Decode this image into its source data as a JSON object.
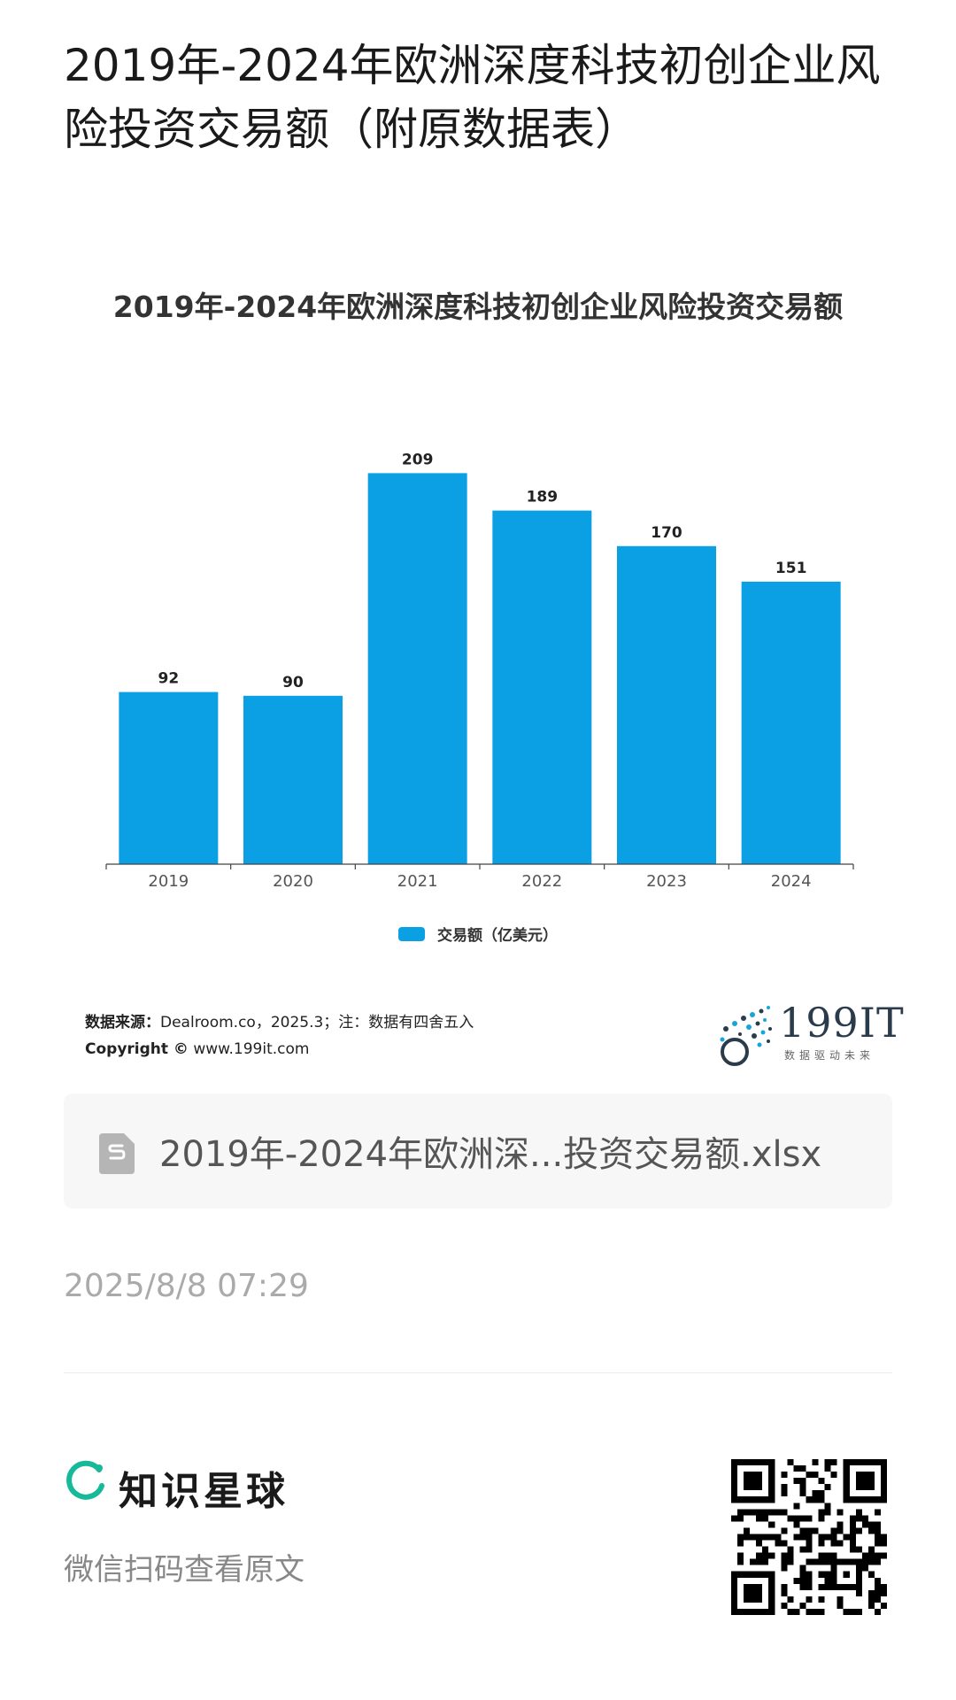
{
  "page": {
    "title": "2019年-2024年欧洲深度科技初创企业风险投资交易额（附原数据表）"
  },
  "chart_data": {
    "type": "bar",
    "title": "2019年-2024年欧洲深度科技初创企业风险投资交易额",
    "categories": [
      "2019",
      "2020",
      "2021",
      "2022",
      "2023",
      "2024"
    ],
    "series": [
      {
        "name": "交易额（亿美元）",
        "values": [
          92,
          90,
          209,
          189,
          170,
          151
        ]
      }
    ],
    "ylim": [
      0,
      230
    ],
    "bar_color": "#0b9fe3",
    "grid": false,
    "legend": "bottom-center",
    "data_labels": true
  },
  "source": {
    "label": "数据来源：",
    "text": "Dealroom.co，2025.3；注：数据有四舍五入",
    "copyright_label": "Copyright ©",
    "copyright_text": " www.199it.com"
  },
  "logo": {
    "text": "199IT",
    "subtitle": "数据驱动未来"
  },
  "file": {
    "name": "2019年-2024年欧洲深...投资交易额.xlsx",
    "icon": "spreadsheet-file-icon"
  },
  "timestamp": "2025/8/8 07:29",
  "footer": {
    "brand_name": "知识星球",
    "brand_icon": "planet-ring-icon",
    "hint": "微信扫码查看原文",
    "qr_icon": "qr-code-icon",
    "brand_color": "#16b998"
  }
}
